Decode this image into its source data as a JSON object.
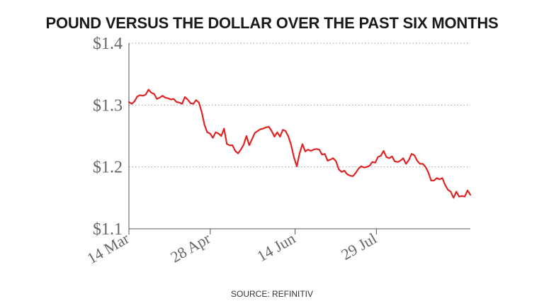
{
  "title": "POUND VERSUS THE DOLLAR OVER THE PAST SIX MONTHS",
  "source": "SOURCE: REFINITIV",
  "colors": {
    "line": "#e02424",
    "grid": "#9a9a9a",
    "axis": "#555555",
    "text": "#666666"
  },
  "chart_data": {
    "type": "line",
    "title": "POUND VERSUS THE DOLLAR OVER THE PAST SIX MONTHS",
    "xlabel": "",
    "ylabel": "",
    "ylim": [
      1.1,
      1.4
    ],
    "y_ticks": [
      1.1,
      1.2,
      1.3,
      1.4
    ],
    "y_tick_labels": [
      "$1.1",
      "$1.2",
      "$1.3",
      "$1.4"
    ],
    "x_tick_labels": [
      "14 Mar",
      "28 Apr",
      "14 Jun",
      "29 Jul"
    ],
    "x_tick_positions": [
      0,
      45,
      92,
      137
    ],
    "x_range": [
      0,
      189
    ],
    "grid": "horizontal dotted",
    "series": [
      {
        "values": [
          1.305,
          1.302,
          1.306,
          1.314,
          1.316,
          1.315,
          1.317,
          1.325,
          1.32,
          1.318,
          1.31,
          1.312,
          1.315,
          1.312,
          1.311,
          1.309,
          1.31,
          1.305,
          1.304,
          1.302,
          1.313,
          1.309,
          1.303,
          1.302,
          1.308,
          1.304,
          1.289,
          1.268,
          1.256,
          1.254,
          1.247,
          1.256,
          1.254,
          1.25,
          1.262,
          1.237,
          1.235,
          1.235,
          1.226,
          1.222,
          1.228,
          1.236,
          1.25,
          1.235,
          1.245,
          1.255,
          1.258,
          1.261,
          1.262,
          1.264,
          1.265,
          1.258,
          1.249,
          1.256,
          1.249,
          1.26,
          1.258,
          1.249,
          1.235,
          1.215,
          1.201,
          1.222,
          1.237,
          1.225,
          1.228,
          1.226,
          1.228,
          1.229,
          1.228,
          1.22,
          1.221,
          1.21,
          1.212,
          1.214,
          1.209,
          1.196,
          1.192,
          1.194,
          1.188,
          1.186,
          1.185,
          1.19,
          1.197,
          1.201,
          1.199,
          1.2,
          1.202,
          1.208,
          1.207,
          1.216,
          1.218,
          1.226,
          1.216,
          1.214,
          1.217,
          1.209,
          1.208,
          1.21,
          1.214,
          1.205,
          1.211,
          1.221,
          1.219,
          1.21,
          1.205,
          1.205,
          1.2,
          1.191,
          1.178,
          1.178,
          1.182,
          1.18,
          1.182,
          1.171,
          1.163,
          1.16,
          1.15,
          1.16,
          1.152,
          1.153,
          1.152,
          1.162,
          1.155
        ]
      }
    ]
  }
}
